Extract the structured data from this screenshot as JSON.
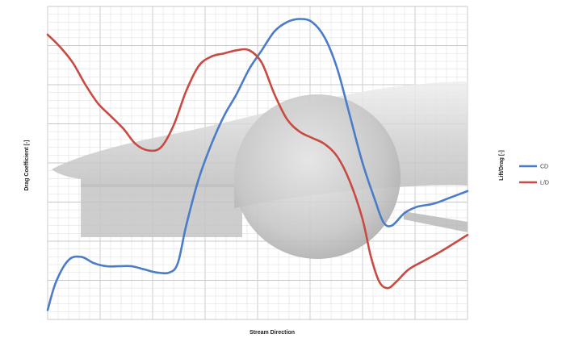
{
  "chart_data": {
    "type": "line",
    "title": "",
    "xlabel": "Stream Direction",
    "ylabel": "Drag Coefficient [-]",
    "y2label": "Lift/Drag [-]",
    "xlim": [
      0,
      1
    ],
    "ylim": [
      0,
      1
    ],
    "grid": true,
    "legend": "right",
    "series": [
      {
        "name": "CD",
        "color": "#4a7cc9",
        "points": [
          [
            0.0,
            0.97
          ],
          [
            0.02,
            0.88
          ],
          [
            0.05,
            0.81
          ],
          [
            0.08,
            0.8
          ],
          [
            0.11,
            0.82
          ],
          [
            0.14,
            0.83
          ],
          [
            0.17,
            0.83
          ],
          [
            0.2,
            0.83
          ],
          [
            0.23,
            0.84
          ],
          [
            0.26,
            0.85
          ],
          [
            0.29,
            0.85
          ],
          [
            0.31,
            0.82
          ],
          [
            0.33,
            0.7
          ],
          [
            0.36,
            0.55
          ],
          [
            0.39,
            0.44
          ],
          [
            0.42,
            0.35
          ],
          [
            0.45,
            0.28
          ],
          [
            0.48,
            0.2
          ],
          [
            0.51,
            0.14
          ],
          [
            0.54,
            0.08
          ],
          [
            0.57,
            0.05
          ],
          [
            0.6,
            0.04
          ],
          [
            0.63,
            0.05
          ],
          [
            0.66,
            0.1
          ],
          [
            0.69,
            0.2
          ],
          [
            0.72,
            0.35
          ],
          [
            0.75,
            0.5
          ],
          [
            0.78,
            0.62
          ],
          [
            0.8,
            0.69
          ],
          [
            0.82,
            0.7
          ],
          [
            0.85,
            0.66
          ],
          [
            0.88,
            0.64
          ],
          [
            0.92,
            0.63
          ],
          [
            0.96,
            0.61
          ],
          [
            1.0,
            0.59
          ]
        ]
      },
      {
        "name": "L/D",
        "color": "#c94a40",
        "points": [
          [
            0.0,
            0.09
          ],
          [
            0.03,
            0.13
          ],
          [
            0.06,
            0.18
          ],
          [
            0.09,
            0.25
          ],
          [
            0.12,
            0.31
          ],
          [
            0.15,
            0.35
          ],
          [
            0.18,
            0.39
          ],
          [
            0.21,
            0.44
          ],
          [
            0.24,
            0.46
          ],
          [
            0.27,
            0.45
          ],
          [
            0.3,
            0.38
          ],
          [
            0.33,
            0.27
          ],
          [
            0.36,
            0.19
          ],
          [
            0.39,
            0.16
          ],
          [
            0.42,
            0.15
          ],
          [
            0.45,
            0.14
          ],
          [
            0.48,
            0.14
          ],
          [
            0.51,
            0.18
          ],
          [
            0.54,
            0.28
          ],
          [
            0.57,
            0.36
          ],
          [
            0.6,
            0.4
          ],
          [
            0.63,
            0.42
          ],
          [
            0.66,
            0.44
          ],
          [
            0.69,
            0.48
          ],
          [
            0.72,
            0.56
          ],
          [
            0.75,
            0.68
          ],
          [
            0.77,
            0.8
          ],
          [
            0.79,
            0.88
          ],
          [
            0.81,
            0.9
          ],
          [
            0.83,
            0.88
          ],
          [
            0.86,
            0.84
          ],
          [
            0.9,
            0.81
          ],
          [
            0.94,
            0.78
          ],
          [
            1.0,
            0.73
          ]
        ]
      }
    ]
  },
  "legend": {
    "items": [
      {
        "label": "CD",
        "color": "#4a7cc9"
      },
      {
        "label": "L/D",
        "color": "#c94a40"
      }
    ]
  }
}
